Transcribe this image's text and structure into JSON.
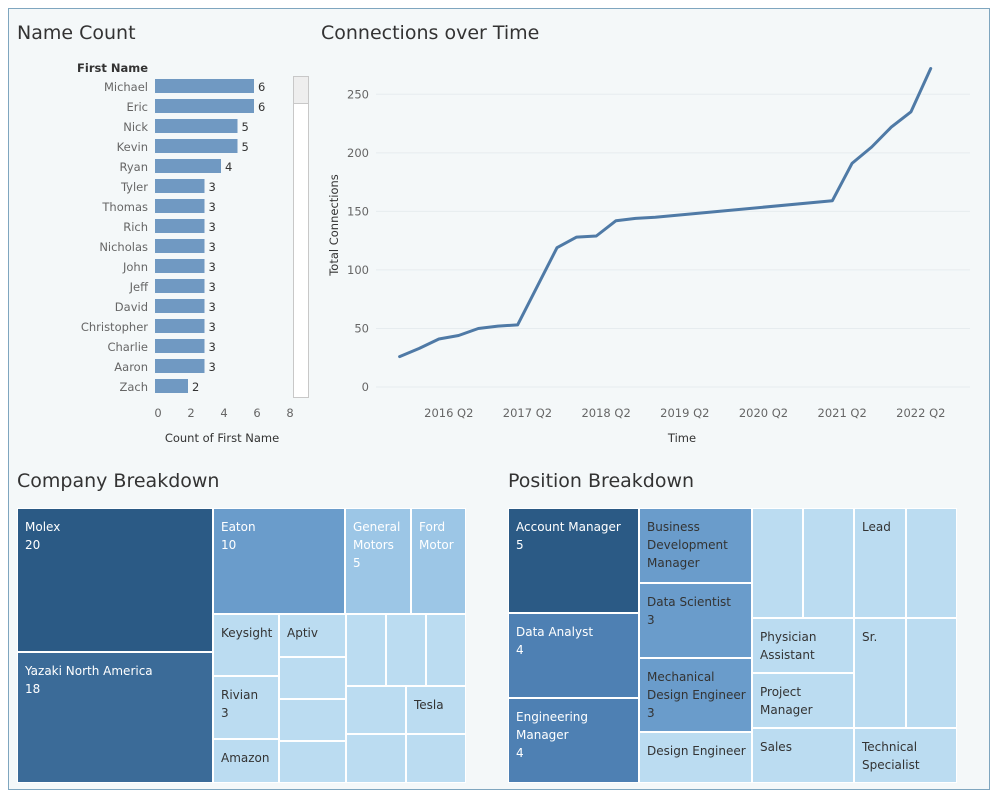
{
  "titles": {
    "name_count": "Name Count",
    "connections": "Connections over Time",
    "company": "Company Breakdown",
    "position": "Position Breakdown"
  },
  "colors": {
    "bar": "#7099c2",
    "line": "#4f7aa6",
    "tm_darkest": "#2b5a85",
    "tm_dark": "#3b6b98",
    "tm_mid": "#4e80b3",
    "tm_medium": "#6a9ccb",
    "tm_light": "#9cc6e6",
    "tm_lightest": "#bbdcf1"
  },
  "chart_data": [
    {
      "type": "bar",
      "orientation": "horizontal",
      "title": "Name Count",
      "category_header": "First Name",
      "categories": [
        "Michael",
        "Eric",
        "Nick",
        "Kevin",
        "Ryan",
        "Tyler",
        "Thomas",
        "Rich",
        "Nicholas",
        "John",
        "Jeff",
        "David",
        "Christopher",
        "Charlie",
        "Aaron",
        "Zach"
      ],
      "values": [
        6,
        6,
        5,
        5,
        4,
        3,
        3,
        3,
        3,
        3,
        3,
        3,
        3,
        3,
        3,
        2
      ],
      "xlabel": "Count of First Name",
      "xticks": [
        0,
        2,
        4,
        6,
        8
      ],
      "xlim": [
        0,
        8
      ]
    },
    {
      "type": "line",
      "title": "Connections over Time",
      "xlabel": "Time",
      "ylabel": "Total Connections",
      "ylim": [
        0,
        275
      ],
      "yticks": [
        0,
        50,
        100,
        150,
        200,
        250
      ],
      "xlim": [
        2015.45,
        2023.0
      ],
      "xticks": [
        {
          "value": 2016.375,
          "label": "2016 Q2"
        },
        {
          "value": 2017.375,
          "label": "2017 Q2"
        },
        {
          "value": 2018.375,
          "label": "2018 Q2"
        },
        {
          "value": 2019.375,
          "label": "2019 Q2"
        },
        {
          "value": 2020.375,
          "label": "2020 Q2"
        },
        {
          "value": 2021.375,
          "label": "2021 Q2"
        },
        {
          "value": 2022.375,
          "label": "2022 Q2"
        }
      ],
      "series": [
        {
          "name": "Total Connections",
          "x": [
            2015.75,
            2016.0,
            2016.25,
            2016.5,
            2016.75,
            2017.0,
            2017.25,
            2017.5,
            2017.75,
            2018.0,
            2018.25,
            2018.5,
            2018.75,
            2019.0,
            2021.25,
            2021.5,
            2021.75,
            2022.0,
            2022.25,
            2022.5
          ],
          "y": [
            26,
            33,
            41,
            44,
            50,
            52,
            53,
            86,
            119,
            128,
            129,
            142,
            144,
            145,
            159,
            191,
            205,
            222,
            235,
            272
          ]
        }
      ]
    },
    {
      "type": "treemap",
      "title": "Company Breakdown",
      "items": [
        {
          "label": "Molex",
          "value": 20
        },
        {
          "label": "Yazaki North America",
          "value": 18
        },
        {
          "label": "Eaton",
          "value": 10
        },
        {
          "label": "General Motors",
          "value": 5
        },
        {
          "label": "Ford Motor",
          "value": ""
        },
        {
          "label": "Keysight",
          "value": ""
        },
        {
          "label": "Aptiv",
          "value": ""
        },
        {
          "label": "Rivian",
          "value": 3
        },
        {
          "label": "Amazon",
          "value": ""
        },
        {
          "label": "Tesla",
          "value": ""
        }
      ]
    },
    {
      "type": "treemap",
      "title": "Position Breakdown",
      "items": [
        {
          "label": "Account Manager",
          "value": 5
        },
        {
          "label": "Data Analyst",
          "value": 4
        },
        {
          "label": "Engineering Manager",
          "value": 4
        },
        {
          "label": "Business Development Manager",
          "value": ""
        },
        {
          "label": "Data Scientist",
          "value": 3
        },
        {
          "label": "Mechanical Design Engineer",
          "value": 3
        },
        {
          "label": "Design Engineer",
          "value": ""
        },
        {
          "label": "Lead",
          "value": ""
        },
        {
          "label": "Physician Assistant",
          "value": ""
        },
        {
          "label": "Project Manager",
          "value": ""
        },
        {
          "label": "Sr.",
          "value": ""
        },
        {
          "label": "Sales",
          "value": ""
        },
        {
          "label": "Technical Specialist",
          "value": ""
        }
      ]
    }
  ]
}
